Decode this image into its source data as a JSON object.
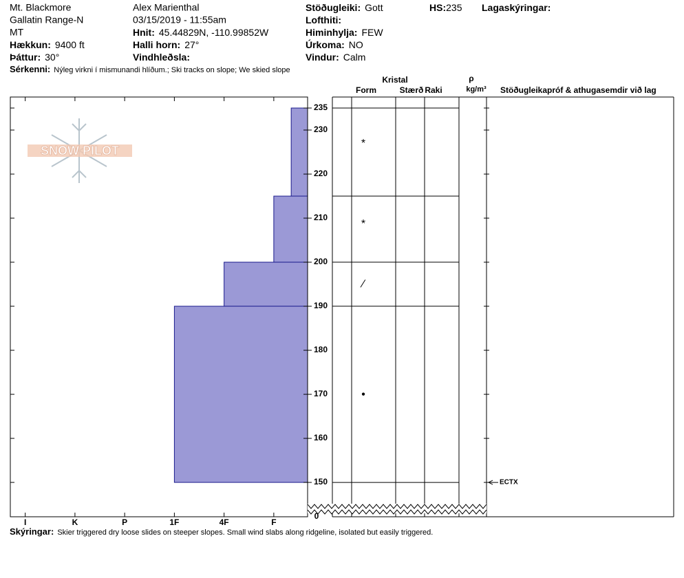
{
  "header": {
    "location": [
      "Mt. Blackmore",
      "Gallatin Range-N",
      "MT"
    ],
    "observer": "Alex Marienthal",
    "datetime": "03/15/2019 - 11:55am",
    "fields": [
      {
        "label": "Hækkun:",
        "value": "9400 ft"
      },
      {
        "label": "Þáttur:",
        "value": "30°"
      },
      {
        "label": "Hnit:",
        "value": "45.44829N, -110.99852W"
      },
      {
        "label": "Halli horn:",
        "value": "27°"
      },
      {
        "label": "Vindhleðsla:"
      },
      {
        "label": "Stöðugleiki:",
        "value": "Gott"
      },
      {
        "label": "Lofthiti:"
      },
      {
        "label": "Himinhylja:",
        "value": "FEW"
      },
      {
        "label": "Úrkoma:",
        "value": "NO"
      },
      {
        "label": "Vindur:",
        "value": "Calm"
      },
      {
        "label": "HS:",
        "value": 235
      },
      {
        "label": "Lagaskýringar:"
      }
    ],
    "features": {
      "label": "Sérkenni:",
      "value": "Nýleg virkni í mismunandi hlíðum.; Ski tracks on slope; We skied slope"
    },
    "logo": "SNOW PILOT"
  },
  "chart_data": {
    "type": "snow-profile",
    "columns": {
      "crystal": "Kristal",
      "form": "Form",
      "size": "Stærð",
      "moisture": "Raki",
      "density": "ρ",
      "density_unit": "kg/m³",
      "comments": "Stöðugleikapróf & athugasemdir við lag"
    },
    "xlim": [
      6.3,
      0.32
    ],
    "xticks": [
      {
        "value": 6,
        "label": "I"
      },
      {
        "value": 5,
        "label": "K"
      },
      {
        "value": 4,
        "label": "P"
      },
      {
        "value": 3,
        "label": "1F"
      },
      {
        "value": 2,
        "label": "4F"
      },
      {
        "value": 1,
        "label": "F"
      }
    ],
    "ylim": [
      142.2,
      237.5
    ],
    "yticks": [
      150,
      160,
      170,
      180,
      190,
      200,
      210,
      220,
      230,
      235
    ],
    "axis_floor_label": 0,
    "color": "#9b99d6",
    "layers": [
      {
        "top": 235,
        "bottom": 215,
        "hardness": 0.65,
        "grain_form": "*"
      },
      {
        "top": 215,
        "bottom": 200,
        "hardness": 1,
        "grain_form": "*"
      },
      {
        "top": 200,
        "bottom": 190,
        "hardness": 2,
        "grain_form": "⁄"
      },
      {
        "top": 190,
        "bottom": 150,
        "hardness": 3,
        "grain_form": "●"
      }
    ],
    "tests": [
      {
        "depth": 150,
        "label": "ECTX"
      }
    ]
  },
  "footer": {
    "label": "Skýringar:",
    "value": "Skier triggered dry loose slides on steeper slopes. Small wind slabs along ridgeline, isolated but easily triggered."
  }
}
